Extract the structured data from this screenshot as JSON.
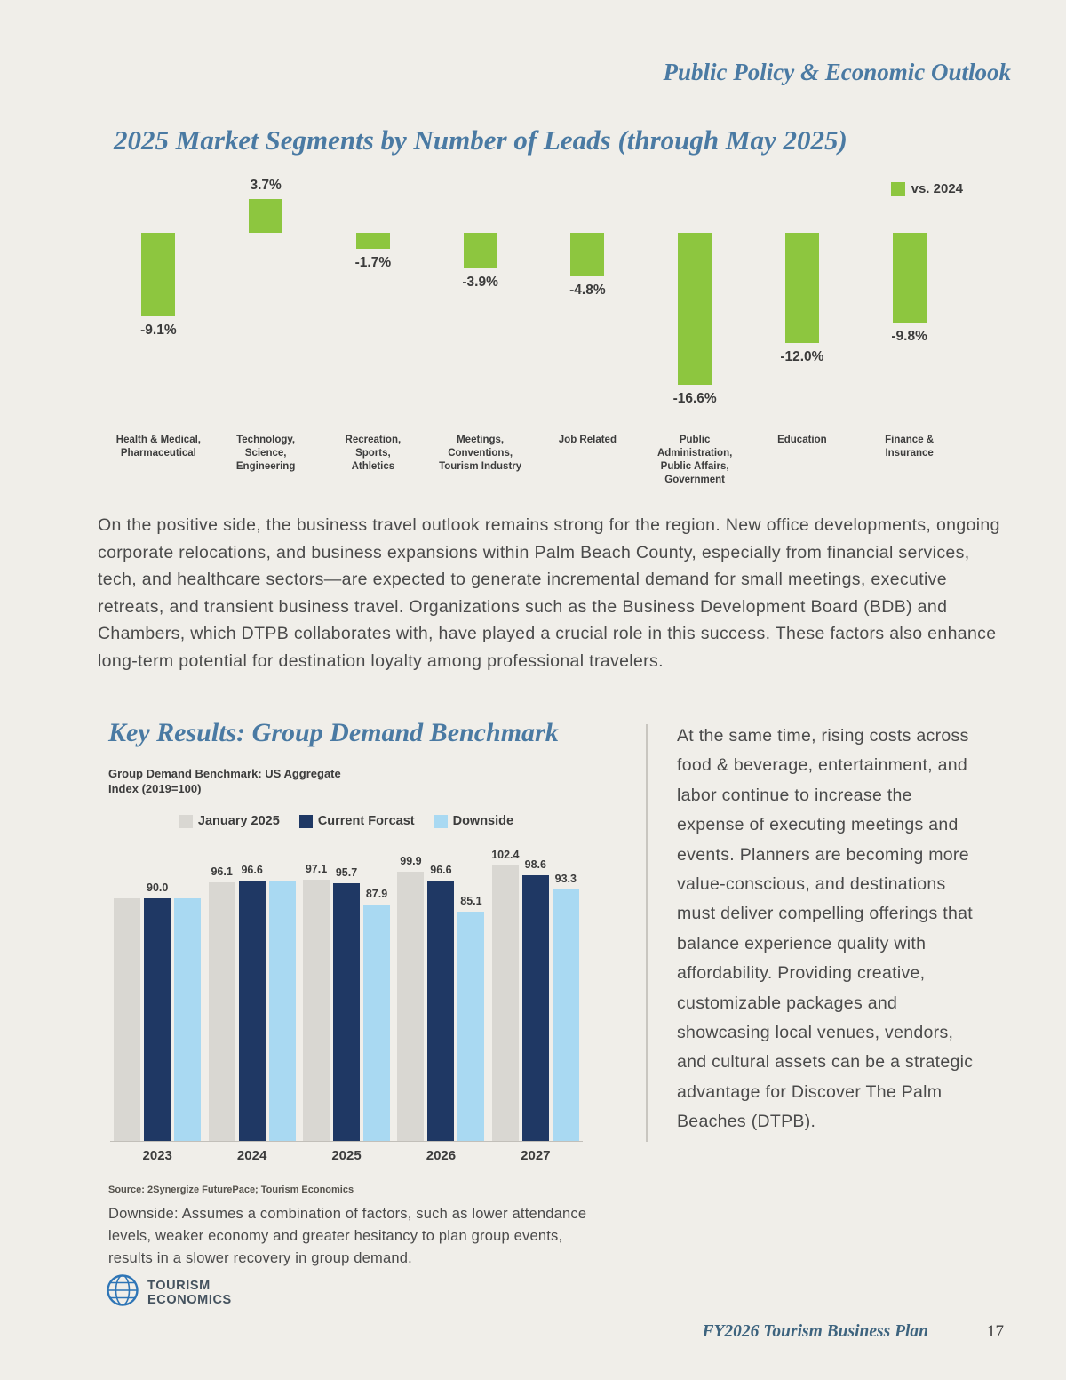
{
  "page": {
    "header": "Public Policy & Economic Outlook",
    "footer_title": "FY2026 Tourism Business Plan",
    "page_number": "17",
    "logo": {
      "line1": "TOURISM",
      "line2": "ECONOMICS"
    }
  },
  "colors": {
    "green": "#8DC63F",
    "heading_blue": "#4A7AA3",
    "navy": "#1F3864",
    "light_blue": "#A9D9F2",
    "gray": "#D9D7D2",
    "body_text": "#4A4A4A"
  },
  "sections": {
    "key_results_title": "Key Results: Group Demand Benchmark"
  },
  "paragraphs": {
    "business_travel": "On the positive side, the business travel outlook remains strong for the region. New office developments, ongoing corporate relocations, and business expansions within Palm Beach County, especially from financial services, tech, and healthcare sectors—are expected to generate incremental demand for small meetings, executive retreats, and transient business travel. Organizations such as the Business Development Board (BDB) and Chambers, which DTPB collaborates with, have played a crucial role in this success. These factors also enhance long-term potential for destination loyalty among professional travelers.",
    "rising_costs": "At the same time, rising costs across food & beverage, entertainment, and labor continue to increase the expense of executing meetings and events. Planners are becoming more value-conscious, and destinations must deliver compelling offerings that balance experience quality with affordability. Providing creative, customizable packages and showcasing local venues, vendors, and cultural assets can be a strategic advantage for Discover The Palm Beaches (DTPB)."
  },
  "benchmark": {
    "source": "Source: 2Synergize FuturePace; Tourism Economics",
    "downside_note": "Downside: Assumes a combination of factors, such as lower attendance levels, weaker economy and greater hesitancy to plan group events, results in a slower recovery in group demand."
  },
  "chart_data": [
    {
      "type": "bar",
      "title": "2025 Market Segments by Number of Leads (through May 2025)",
      "legend": "vs. 2024",
      "legend_position": "top-right",
      "grid": false,
      "unit": "%",
      "ylim": [
        -18,
        5
      ],
      "categories": [
        "Health & Medical,\nPharmaceutical",
        "Technology,\nScience,\nEngineering",
        "Recreation,\nSports,\nAthletics",
        "Meetings,\nConventions,\nTourism Industry",
        "Job Related",
        "Public\nAdministration,\nPublic Affairs,\nGovernment",
        "Education",
        "Finance &\nInsurance"
      ],
      "values": [
        -9.1,
        3.7,
        -1.7,
        -3.9,
        -4.8,
        -16.6,
        -12.0,
        -9.8
      ],
      "labels": [
        "-9.1%",
        "3.7%",
        "-1.7%",
        "-3.9%",
        "-4.8%",
        "-16.6%",
        "-12.0%",
        "-9.8%"
      ]
    },
    {
      "type": "bar",
      "title": "Group Demand Benchmark: US Aggregate\nIndex (2019=100)",
      "legend_position": "top",
      "grid": false,
      "ylim": [
        0,
        110
      ],
      "categories": [
        "2023",
        "2024",
        "2025",
        "2026",
        "2027"
      ],
      "series": [
        {
          "name": "January 2025",
          "color_key": "gray",
          "values": [
            90.0,
            96.1,
            97.1,
            99.9,
            102.4
          ],
          "labels": [
            "",
            "96.1",
            "97.1",
            "99.9",
            "102.4"
          ]
        },
        {
          "name": "Current Forcast",
          "color_key": "navy",
          "values": [
            90.0,
            96.6,
            95.7,
            96.6,
            98.6
          ],
          "labels": [
            "90.0",
            "96.6",
            "95.7",
            "96.6",
            "98.6"
          ]
        },
        {
          "name": "Downside",
          "color_key": "light_blue",
          "values": [
            90.0,
            96.6,
            87.9,
            85.1,
            93.3
          ],
          "labels": [
            "",
            "",
            "87.9",
            "85.1",
            "93.3"
          ]
        }
      ]
    }
  ]
}
